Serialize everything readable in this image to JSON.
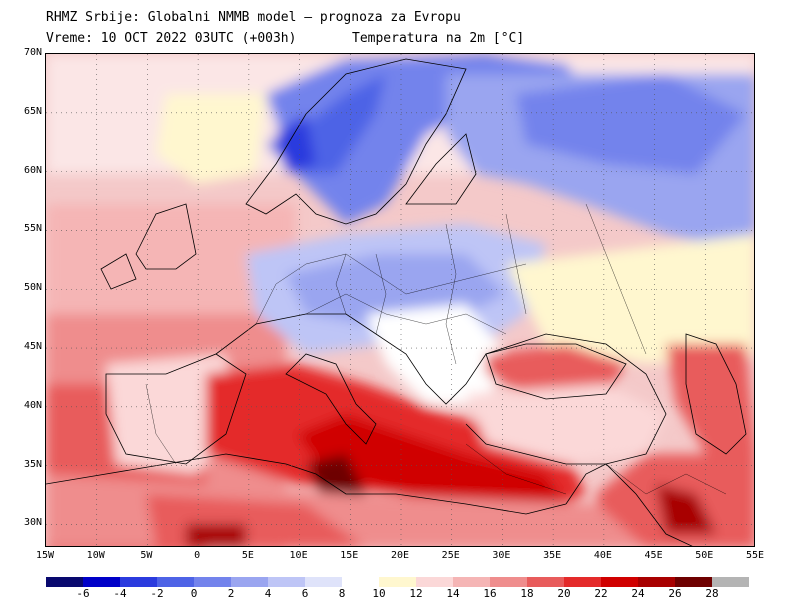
{
  "header": {
    "line1": "RHMZ Srbije: Globalni NMMB model — prognoza za Evropu",
    "line2": "Vreme: 10 OCT 2022 03UTC (+003h)",
    "line3": "Temperatura na 2m [°C]"
  },
  "map": {
    "lat_labels": [
      "70N",
      "65N",
      "60N",
      "55N",
      "50N",
      "45N",
      "40N",
      "35N",
      "30N"
    ],
    "lat_values": [
      70,
      65,
      60,
      55,
      50,
      45,
      40,
      35,
      30
    ],
    "lon_labels": [
      "15W",
      "10W",
      "5W",
      "0",
      "5E",
      "10E",
      "15E",
      "20E",
      "25E",
      "30E",
      "35E",
      "40E",
      "45E",
      "50E",
      "55E"
    ],
    "lon_values": [
      -15,
      -10,
      -5,
      0,
      5,
      10,
      15,
      20,
      25,
      30,
      35,
      40,
      45,
      50,
      55
    ],
    "lon_range": [
      -15,
      55
    ],
    "lat_range": [
      28,
      70
    ],
    "ocean_color": "#f4c9c9"
  },
  "legend": {
    "labels": [
      "-6",
      "-4",
      "-2",
      "0",
      "2",
      "4",
      "6",
      "8",
      "10",
      "12",
      "14",
      "16",
      "18",
      "20",
      "22",
      "24",
      "26",
      "28"
    ],
    "colors": [
      "#08086e",
      "#0000c8",
      "#2b3bde",
      "#4e63e6",
      "#7383ec",
      "#9aa5f0",
      "#bec5f6",
      "#dfe3fa",
      "#ffffff",
      "#fff7cf",
      "#fbd8d8",
      "#f5b5b5",
      "#ef8d8d",
      "#e85c5c",
      "#e42a2a",
      "#d00000",
      "#a80000",
      "#6e0000",
      "#b4b4b4"
    ]
  }
}
